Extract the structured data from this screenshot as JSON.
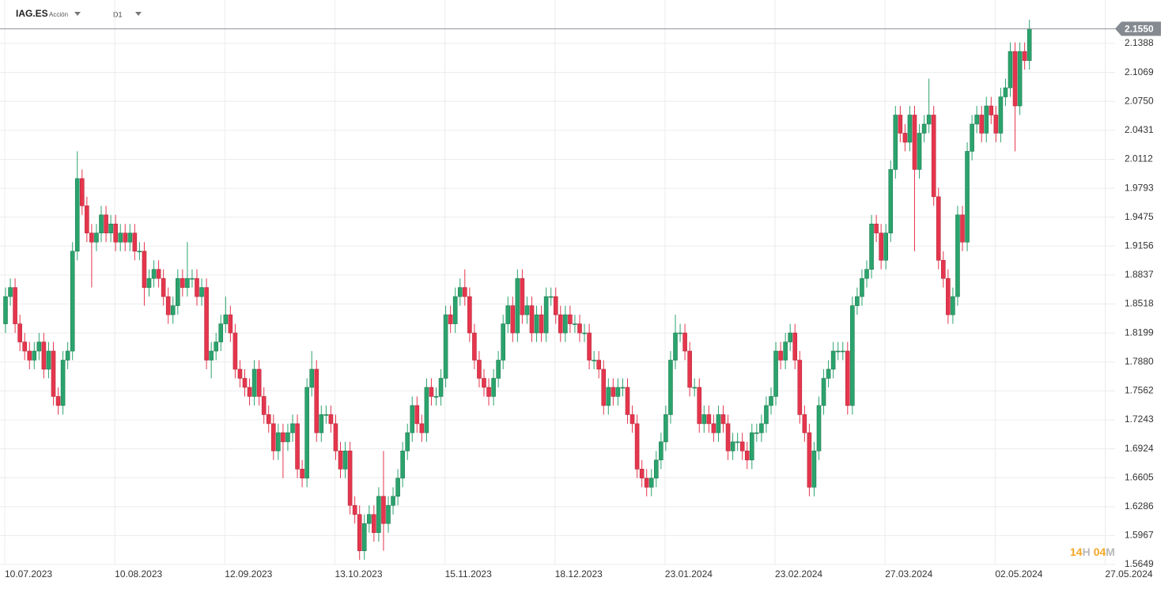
{
  "chart_data": {
    "type": "candlestick",
    "symbol": "IAG.ES",
    "instrument_type": "Acción",
    "timeframe": "D1",
    "categories": [
      "10.07.2023",
      null,
      null,
      null,
      null,
      null,
      null,
      null,
      null,
      null,
      null,
      null,
      null,
      null,
      null,
      null,
      null,
      null,
      null,
      null,
      null,
      null,
      null,
      "10.08.2023",
      null,
      null,
      null,
      null,
      null,
      null,
      null,
      null,
      null,
      null,
      null,
      null,
      null,
      null,
      null,
      null,
      null,
      null,
      null,
      null,
      null,
      null,
      "12.09.2023",
      null,
      null,
      null,
      null,
      null,
      null,
      null,
      null,
      null,
      null,
      null,
      null,
      null,
      null,
      null,
      null,
      null,
      null,
      null,
      null,
      null,
      null,
      "13.10.2023",
      null,
      null,
      null,
      null,
      null,
      null,
      null,
      null,
      null,
      null,
      null,
      null,
      null,
      null,
      null,
      null,
      null,
      null,
      null,
      null,
      null,
      null,
      "15.11.2023",
      null,
      null,
      null,
      null,
      null,
      null,
      null,
      null,
      null,
      null,
      null,
      null,
      null,
      null,
      null,
      null,
      null,
      null,
      null,
      null,
      null,
      null,
      "18.12.2023",
      null,
      null,
      null,
      null,
      null,
      null,
      null,
      null,
      null,
      null,
      null,
      null,
      null,
      null,
      null,
      null,
      null,
      null,
      null,
      null,
      null,
      null,
      "23.01.2024",
      null,
      null,
      null,
      null,
      null,
      null,
      null,
      null,
      null,
      null,
      null,
      null,
      null,
      null,
      null,
      null,
      null,
      null,
      null,
      null,
      null,
      null,
      "23.02.2024",
      null,
      null,
      null,
      null,
      null,
      null,
      null,
      null,
      null,
      null,
      null,
      null,
      null,
      null,
      null,
      null,
      null,
      null,
      null,
      null,
      null,
      null,
      "27.03.2024",
      null,
      null,
      null,
      null,
      null,
      null,
      null,
      null,
      null,
      null,
      null,
      null,
      null,
      null,
      null,
      null,
      null,
      null,
      null,
      null,
      null,
      null,
      "02.05.2024",
      null,
      null,
      null,
      null,
      null,
      null,
      null,
      null,
      null,
      null,
      null,
      null,
      null,
      null,
      null,
      null,
      null,
      null,
      null,
      null,
      null,
      null,
      "27.05.2024"
    ],
    "open": [
      1.83,
      1.86,
      1.87,
      1.83,
      1.81,
      1.8,
      1.79,
      1.8,
      1.81,
      1.78,
      1.8,
      1.75,
      1.74,
      1.79,
      1.8,
      1.91,
      1.99,
      1.96,
      1.93,
      1.92,
      1.93,
      1.95,
      1.93,
      1.94,
      1.92,
      1.93,
      1.92,
      1.93,
      1.91,
      1.91,
      1.87,
      1.88,
      1.89,
      1.88,
      1.86,
      1.84,
      1.85,
      1.88,
      1.87,
      1.88,
      1.88,
      1.86,
      1.87,
      1.79,
      1.8,
      1.81,
      1.83,
      1.84,
      1.82,
      1.78,
      1.77,
      1.76,
      1.75,
      1.78,
      1.75,
      1.73,
      1.72,
      1.69,
      1.71,
      1.7,
      1.71,
      1.72,
      1.67,
      1.66,
      1.76,
      1.78,
      1.71,
      1.73,
      1.73,
      1.72,
      1.69,
      1.67,
      1.69,
      1.63,
      1.62,
      1.58,
      1.61,
      1.62,
      1.6,
      1.64,
      1.61,
      1.63,
      1.64,
      1.66,
      1.69,
      1.71,
      1.74,
      1.72,
      1.71,
      1.76,
      1.75,
      1.75,
      1.77,
      1.84,
      1.83,
      1.86,
      1.87,
      1.86,
      1.82,
      1.79,
      1.77,
      1.76,
      1.75,
      1.77,
      1.79,
      1.83,
      1.85,
      1.82,
      1.88,
      1.84,
      1.85,
      1.82,
      1.84,
      1.82,
      1.86,
      1.86,
      1.84,
      1.82,
      1.84,
      1.83,
      1.83,
      1.82,
      1.82,
      1.79,
      1.79,
      1.78,
      1.74,
      1.76,
      1.75,
      1.76,
      1.76,
      1.73,
      1.72,
      1.67,
      1.66,
      1.65,
      1.66,
      1.68,
      1.7,
      1.73,
      1.79,
      1.82,
      1.82,
      1.8,
      1.76,
      1.76,
      1.72,
      1.73,
      1.72,
      1.71,
      1.73,
      1.72,
      1.69,
      1.7,
      1.7,
      1.69,
      1.68,
      1.71,
      1.71,
      1.72,
      1.74,
      1.75,
      1.8,
      1.79,
      1.81,
      1.82,
      1.79,
      1.73,
      1.71,
      1.65,
      1.69,
      1.74,
      1.77,
      1.78,
      1.8,
      1.8,
      1.8,
      1.74,
      1.85,
      1.86,
      1.88,
      1.89,
      1.94,
      1.93,
      1.9,
      1.93,
      2.0,
      2.06,
      2.04,
      2.03,
      2.06,
      2.0,
      2.04,
      2.05,
      2.06,
      1.97,
      1.9,
      1.88,
      1.84,
      1.86,
      1.95,
      1.92,
      2.02,
      2.05,
      2.06,
      2.04,
      2.07,
      2.06,
      2.04,
      2.08,
      2.09,
      2.13,
      2.07,
      2.13,
      2.12,
      null,
      null,
      null,
      null,
      null,
      null,
      null,
      null,
      null,
      null,
      null,
      null,
      null,
      null,
      null,
      null
    ],
    "high": [
      1.87,
      1.88,
      1.88,
      1.84,
      1.82,
      1.81,
      1.81,
      1.82,
      1.82,
      1.81,
      1.81,
      1.76,
      1.8,
      1.81,
      1.92,
      2.02,
      2.0,
      1.97,
      1.94,
      1.94,
      1.96,
      1.96,
      1.95,
      1.95,
      1.94,
      1.94,
      1.94,
      1.94,
      1.92,
      1.92,
      1.89,
      1.9,
      1.9,
      1.89,
      1.87,
      1.86,
      1.89,
      1.89,
      1.92,
      1.89,
      1.89,
      1.88,
      1.88,
      1.81,
      1.82,
      1.84,
      1.86,
      1.85,
      1.83,
      1.79,
      1.78,
      1.77,
      1.79,
      1.79,
      1.76,
      1.74,
      1.73,
      1.72,
      1.72,
      1.72,
      1.73,
      1.73,
      1.68,
      1.77,
      1.8,
      1.79,
      1.74,
      1.74,
      1.74,
      1.73,
      1.7,
      1.7,
      1.7,
      1.64,
      1.63,
      1.62,
      1.63,
      1.63,
      1.65,
      1.69,
      1.64,
      1.65,
      1.67,
      1.7,
      1.72,
      1.75,
      1.75,
      1.73,
      1.77,
      1.77,
      1.76,
      1.78,
      1.85,
      1.85,
      1.87,
      1.88,
      1.89,
      1.87,
      1.83,
      1.8,
      1.78,
      1.77,
      1.78,
      1.8,
      1.84,
      1.86,
      1.86,
      1.89,
      1.89,
      1.86,
      1.86,
      1.85,
      1.85,
      1.87,
      1.87,
      1.87,
      1.85,
      1.85,
      1.85,
      1.84,
      1.84,
      1.83,
      1.83,
      1.8,
      1.8,
      1.79,
      1.77,
      1.77,
      1.77,
      1.77,
      1.77,
      1.74,
      1.73,
      1.68,
      1.67,
      1.67,
      1.69,
      1.71,
      1.74,
      1.8,
      1.84,
      1.83,
      1.83,
      1.81,
      1.77,
      1.77,
      1.74,
      1.74,
      1.73,
      1.74,
      1.74,
      1.73,
      1.71,
      1.71,
      1.71,
      1.7,
      1.72,
      1.72,
      1.73,
      1.75,
      1.76,
      1.81,
      1.81,
      1.82,
      1.83,
      1.83,
      1.8,
      1.74,
      1.72,
      1.7,
      1.75,
      1.78,
      1.79,
      1.81,
      1.81,
      1.81,
      1.81,
      1.86,
      1.87,
      1.89,
      1.9,
      1.95,
      1.95,
      1.94,
      1.94,
      2.01,
      2.07,
      2.07,
      2.05,
      2.07,
      2.07,
      2.05,
      2.06,
      2.1,
      2.07,
      1.98,
      1.91,
      1.89,
      1.87,
      1.96,
      1.96,
      2.03,
      2.06,
      2.07,
      2.07,
      2.08,
      2.08,
      2.07,
      2.09,
      2.1,
      2.14,
      2.14,
      2.14,
      2.14,
      2.165,
      null,
      null,
      null,
      null,
      null,
      null,
      null,
      null,
      null,
      null,
      null,
      null,
      null,
      null,
      null,
      null
    ],
    "low": [
      1.82,
      1.85,
      1.82,
      1.8,
      1.79,
      1.78,
      1.78,
      1.79,
      1.77,
      1.77,
      1.74,
      1.73,
      1.73,
      1.78,
      1.79,
      1.9,
      1.95,
      1.92,
      1.87,
      1.91,
      1.92,
      1.92,
      1.92,
      1.91,
      1.91,
      1.91,
      1.91,
      1.9,
      1.9,
      1.85,
      1.86,
      1.87,
      1.87,
      1.85,
      1.83,
      1.83,
      1.84,
      1.86,
      1.86,
      1.87,
      1.85,
      1.85,
      1.78,
      1.77,
      1.79,
      1.8,
      1.82,
      1.81,
      1.77,
      1.76,
      1.75,
      1.74,
      1.74,
      1.74,
      1.72,
      1.71,
      1.68,
      1.68,
      1.66,
      1.69,
      1.7,
      1.66,
      1.65,
      1.65,
      1.75,
      1.7,
      1.7,
      1.72,
      1.71,
      1.68,
      1.66,
      1.66,
      1.62,
      1.61,
      1.57,
      1.57,
      1.6,
      1.59,
      1.59,
      1.58,
      1.6,
      1.62,
      1.63,
      1.65,
      1.68,
      1.7,
      1.71,
      1.7,
      1.7,
      1.74,
      1.74,
      1.74,
      1.76,
      1.82,
      1.82,
      1.85,
      1.85,
      1.81,
      1.78,
      1.76,
      1.75,
      1.74,
      1.74,
      1.76,
      1.78,
      1.82,
      1.81,
      1.81,
      1.83,
      1.83,
      1.81,
      1.81,
      1.81,
      1.81,
      1.85,
      1.83,
      1.81,
      1.81,
      1.82,
      1.82,
      1.81,
      1.81,
      1.78,
      1.78,
      1.77,
      1.73,
      1.73,
      1.74,
      1.74,
      1.75,
      1.72,
      1.71,
      1.66,
      1.65,
      1.64,
      1.64,
      1.65,
      1.67,
      1.69,
      1.72,
      1.78,
      1.81,
      1.79,
      1.75,
      1.75,
      1.71,
      1.71,
      1.71,
      1.7,
      1.7,
      1.71,
      1.68,
      1.68,
      1.69,
      1.68,
      1.67,
      1.67,
      1.7,
      1.7,
      1.71,
      1.73,
      1.74,
      1.78,
      1.78,
      1.8,
      1.78,
      1.72,
      1.7,
      1.64,
      1.64,
      1.68,
      1.73,
      1.76,
      1.77,
      1.79,
      1.79,
      1.73,
      1.73,
      1.84,
      1.85,
      1.87,
      1.88,
      1.92,
      1.89,
      1.89,
      1.92,
      1.99,
      2.03,
      2.02,
      2.02,
      1.91,
      1.99,
      2.03,
      2.04,
      1.96,
      1.89,
      1.87,
      1.83,
      1.83,
      1.85,
      1.91,
      1.91,
      2.01,
      2.04,
      2.03,
      2.03,
      2.05,
      2.03,
      2.03,
      2.07,
      2.08,
      2.02,
      2.06,
      2.11,
      2.11,
      null,
      null,
      null,
      null,
      null,
      null,
      null,
      null,
      null,
      null,
      null,
      null,
      null,
      null,
      null,
      null
    ],
    "close": [
      1.86,
      1.87,
      1.83,
      1.81,
      1.8,
      1.79,
      1.8,
      1.81,
      1.78,
      1.8,
      1.75,
      1.74,
      1.79,
      1.8,
      1.91,
      1.99,
      1.96,
      1.93,
      1.92,
      1.93,
      1.95,
      1.93,
      1.94,
      1.92,
      1.93,
      1.92,
      1.93,
      1.91,
      1.91,
      1.87,
      1.88,
      1.89,
      1.88,
      1.86,
      1.84,
      1.85,
      1.88,
      1.87,
      1.88,
      1.88,
      1.86,
      1.87,
      1.79,
      1.8,
      1.81,
      1.83,
      1.84,
      1.82,
      1.78,
      1.77,
      1.76,
      1.75,
      1.78,
      1.75,
      1.73,
      1.72,
      1.69,
      1.71,
      1.7,
      1.71,
      1.72,
      1.67,
      1.66,
      1.76,
      1.78,
      1.71,
      1.73,
      1.73,
      1.72,
      1.69,
      1.67,
      1.69,
      1.63,
      1.62,
      1.58,
      1.61,
      1.62,
      1.6,
      1.64,
      1.61,
      1.63,
      1.64,
      1.66,
      1.69,
      1.71,
      1.74,
      1.72,
      1.71,
      1.76,
      1.75,
      1.75,
      1.77,
      1.84,
      1.83,
      1.86,
      1.87,
      1.86,
      1.82,
      1.79,
      1.77,
      1.76,
      1.75,
      1.77,
      1.79,
      1.83,
      1.85,
      1.82,
      1.88,
      1.84,
      1.85,
      1.82,
      1.84,
      1.82,
      1.86,
      1.86,
      1.84,
      1.82,
      1.84,
      1.83,
      1.83,
      1.82,
      1.82,
      1.79,
      1.79,
      1.78,
      1.74,
      1.76,
      1.75,
      1.76,
      1.76,
      1.73,
      1.72,
      1.67,
      1.66,
      1.65,
      1.66,
      1.68,
      1.7,
      1.73,
      1.79,
      1.82,
      1.82,
      1.8,
      1.76,
      1.76,
      1.72,
      1.73,
      1.72,
      1.71,
      1.73,
      1.72,
      1.69,
      1.7,
      1.7,
      1.69,
      1.68,
      1.71,
      1.71,
      1.72,
      1.74,
      1.75,
      1.8,
      1.79,
      1.81,
      1.82,
      1.79,
      1.73,
      1.71,
      1.65,
      1.69,
      1.74,
      1.77,
      1.78,
      1.8,
      1.8,
      1.8,
      1.74,
      1.85,
      1.86,
      1.88,
      1.89,
      1.94,
      1.93,
      1.9,
      1.93,
      2.0,
      2.06,
      2.04,
      2.03,
      2.06,
      2.0,
      2.04,
      2.05,
      2.06,
      1.97,
      1.9,
      1.88,
      1.84,
      1.86,
      1.95,
      1.92,
      2.02,
      2.05,
      2.06,
      2.04,
      2.07,
      2.06,
      2.04,
      2.08,
      2.09,
      2.13,
      2.07,
      2.13,
      2.12,
      2.155,
      null,
      null,
      null,
      null,
      null,
      null,
      null,
      null,
      null,
      null,
      null,
      null,
      null,
      null,
      null,
      null
    ],
    "up_color": "#2ba36d",
    "down_color": "#e5364d",
    "ylim": [
      1.5649,
      2.1867
    ],
    "yticks": [
      2.1388,
      2.1069,
      {
        "value": 2.075,
        "label": "2.0750"
      },
      2.0431,
      2.0112,
      1.9793,
      1.9475,
      1.9156,
      1.8837,
      1.8518,
      1.8199,
      {
        "value": 1.788,
        "label": "1.7880"
      },
      1.7562,
      1.7243,
      1.6924,
      1.6605,
      1.6286,
      1.5967,
      1.5649
    ],
    "grid": true,
    "last_price": {
      "value": 2.155,
      "label": "2.1550"
    },
    "countdown": {
      "hours": "14",
      "hours_unit": "H",
      "minutes": "04",
      "minutes_unit": "M"
    }
  }
}
